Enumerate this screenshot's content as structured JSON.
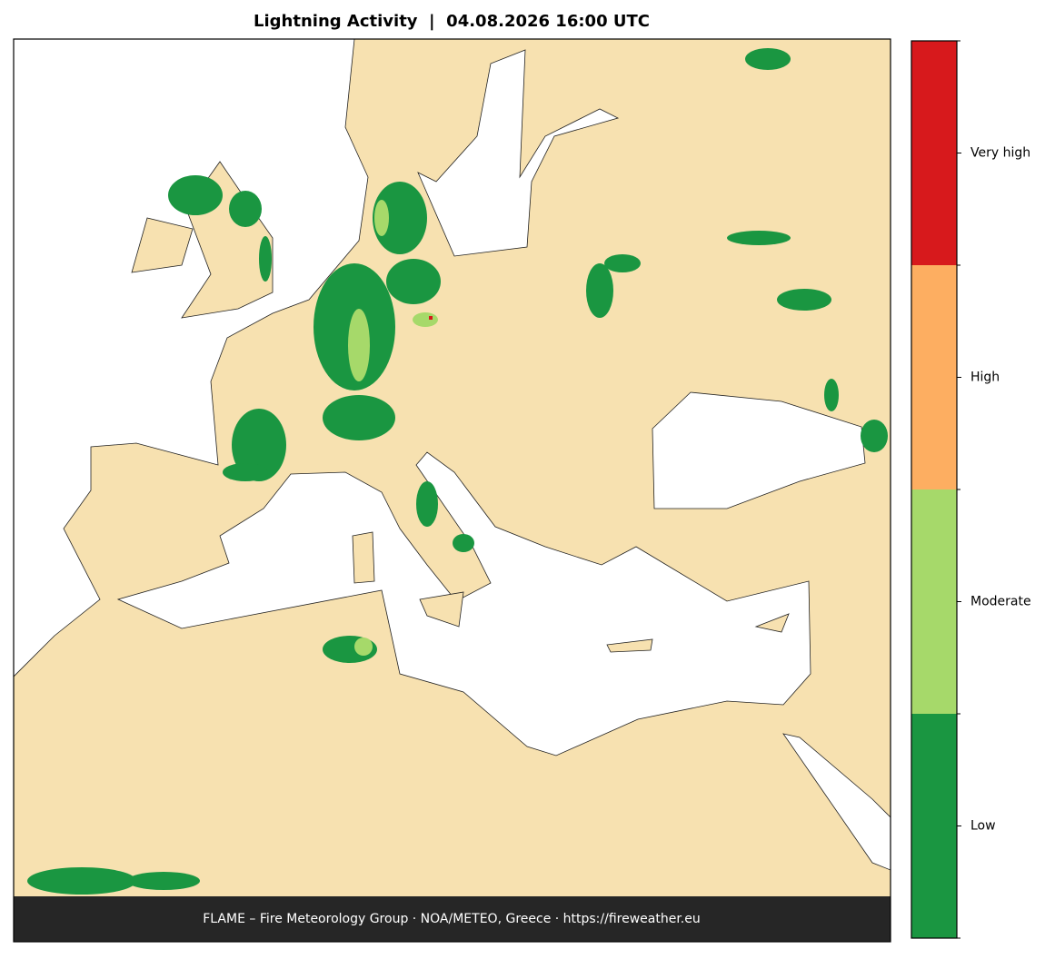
{
  "title": "Lightning Activity  |  04.08.2026 16:00 UTC",
  "legend": {
    "items": [
      {
        "label": "Low",
        "color": "#1a9641"
      },
      {
        "label": "Moderate",
        "color": "#a6d96a"
      },
      {
        "label": "High",
        "color": "#fdae61"
      },
      {
        "label": "Very high",
        "color": "#d7191c"
      }
    ]
  },
  "footer": "FLAME – Fire Meteorology Group · NOA/METEO, Greece · https://fireweather.eu"
}
